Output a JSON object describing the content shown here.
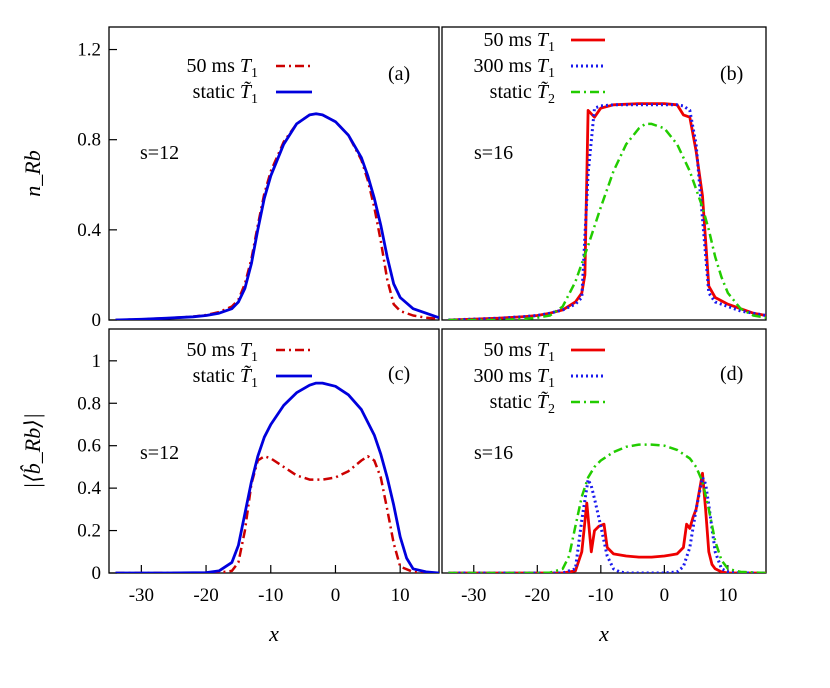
{
  "chart_data": [
    {
      "id": "a",
      "type": "line",
      "panel_label": "(a)",
      "annotation": "s=12",
      "xlim": [
        -35,
        16
      ],
      "ylim": [
        0,
        1.3
      ],
      "yticks": [
        {
          "v": 0,
          "label": "0"
        },
        {
          "v": 0.4,
          "label": "0.4"
        },
        {
          "v": 0.8,
          "label": "0.8"
        },
        {
          "v": 1.2,
          "label": "1.2"
        }
      ],
      "xticks": [],
      "ylabel": "n_Rb",
      "xlabel": "",
      "series": [
        {
          "name": "50 ms T1",
          "label_text": "50 ms",
          "label_sym": "T",
          "label_sub": "1",
          "color": "#cc0000",
          "dash": "9,4,2,4",
          "width": 2.5,
          "x": [
            -34,
            -30,
            -26,
            -22,
            -20,
            -18,
            -16,
            -15,
            -14,
            -13,
            -12,
            -11,
            -10,
            -8,
            -6,
            -4,
            -3,
            -2,
            0,
            2,
            4,
            5,
            6,
            7,
            8,
            9,
            10,
            12,
            14,
            16
          ],
          "y": [
            0,
            0.003,
            0.008,
            0.015,
            0.022,
            0.035,
            0.06,
            0.09,
            0.16,
            0.27,
            0.42,
            0.56,
            0.66,
            0.79,
            0.87,
            0.91,
            0.915,
            0.91,
            0.88,
            0.82,
            0.71,
            0.62,
            0.5,
            0.35,
            0.18,
            0.07,
            0.04,
            0.02,
            0.01,
            0.005
          ]
        },
        {
          "name": "static T~1",
          "label_text": "static",
          "label_sym": "T̃",
          "label_sub": "1",
          "color": "#0000dd",
          "dash": "",
          "width": 2.8,
          "x": [
            -34,
            -30,
            -26,
            -22,
            -20,
            -18,
            -16,
            -15,
            -14,
            -13,
            -12,
            -11,
            -10,
            -8,
            -6,
            -4,
            -3,
            -2,
            0,
            2,
            4,
            5,
            6,
            7,
            8,
            9,
            10,
            12,
            14,
            16
          ],
          "y": [
            0,
            0.003,
            0.008,
            0.014,
            0.02,
            0.03,
            0.05,
            0.08,
            0.14,
            0.25,
            0.4,
            0.54,
            0.64,
            0.78,
            0.87,
            0.91,
            0.915,
            0.91,
            0.88,
            0.82,
            0.72,
            0.64,
            0.54,
            0.42,
            0.28,
            0.16,
            0.1,
            0.05,
            0.03,
            0.01
          ]
        }
      ]
    },
    {
      "id": "b",
      "type": "line",
      "panel_label": "(b)",
      "annotation": "s=16",
      "xlim": [
        -35,
        16
      ],
      "ylim": [
        0,
        1.3
      ],
      "yticks": [],
      "xticks": [],
      "ylabel": "",
      "xlabel": "",
      "series": [
        {
          "name": "50 ms T1",
          "label_text": "50 ms",
          "label_sym": "T",
          "label_sub": "1",
          "color": "#ee0000",
          "dash": "",
          "width": 2.8,
          "x": [
            -34,
            -30,
            -26,
            -22,
            -20,
            -18,
            -16,
            -14,
            -13,
            -12.5,
            -12,
            -11,
            -10,
            -8,
            -4,
            0,
            2,
            3,
            4,
            5,
            6,
            7,
            8,
            10,
            12,
            14,
            16
          ],
          "y": [
            0,
            0.004,
            0.008,
            0.015,
            0.02,
            0.03,
            0.045,
            0.08,
            0.12,
            0.2,
            0.93,
            0.9,
            0.94,
            0.955,
            0.96,
            0.96,
            0.955,
            0.91,
            0.9,
            0.75,
            0.55,
            0.15,
            0.1,
            0.07,
            0.05,
            0.03,
            0.02
          ]
        },
        {
          "name": "300 ms T1",
          "label_text": "300 ms",
          "label_sym": "T",
          "label_sub": "1",
          "color": "#1a1aee",
          "dash": "2,3",
          "width": 3,
          "x": [
            -34,
            -30,
            -26,
            -22,
            -20,
            -18,
            -16,
            -14,
            -13,
            -12,
            -11,
            -10,
            -8,
            -4,
            0,
            2,
            3,
            4,
            5,
            6,
            7,
            8,
            10,
            12,
            14,
            16
          ],
          "y": [
            0,
            0.004,
            0.008,
            0.015,
            0.02,
            0.03,
            0.045,
            0.07,
            0.1,
            0.65,
            0.94,
            0.95,
            0.955,
            0.955,
            0.955,
            0.955,
            0.95,
            0.93,
            0.78,
            0.45,
            0.12,
            0.08,
            0.06,
            0.04,
            0.03,
            0.02
          ]
        },
        {
          "name": "static T~2",
          "label_text": "static",
          "label_sym": "T̃",
          "label_sub": "2",
          "color": "#22cc00",
          "dash": "9,4,2,4",
          "width": 2.5,
          "x": [
            -34,
            -26,
            -22,
            -20,
            -18,
            -16,
            -14,
            -12,
            -10,
            -8,
            -6,
            -4,
            -3,
            -2,
            0,
            2,
            4,
            6,
            7,
            8,
            9,
            10,
            12,
            14,
            16
          ],
          "y": [
            0,
            0,
            0.005,
            0.01,
            0.02,
            0.06,
            0.17,
            0.33,
            0.5,
            0.66,
            0.78,
            0.85,
            0.87,
            0.87,
            0.85,
            0.78,
            0.66,
            0.5,
            0.4,
            0.28,
            0.19,
            0.12,
            0.05,
            0.02,
            0.01
          ]
        }
      ]
    },
    {
      "id": "c",
      "type": "line",
      "panel_label": "(c)",
      "annotation": "s=12",
      "xlim": [
        -35,
        16
      ],
      "ylim": [
        0,
        1.15
      ],
      "yticks": [
        {
          "v": 0,
          "label": "0"
        },
        {
          "v": 0.2,
          "label": "0.2"
        },
        {
          "v": 0.4,
          "label": "0.4"
        },
        {
          "v": 0.6,
          "label": "0.6"
        },
        {
          "v": 0.8,
          "label": "0.8"
        },
        {
          "v": 1,
          "label": "1"
        }
      ],
      "xticks": [
        {
          "v": -30,
          "label": "-30"
        },
        {
          "v": -20,
          "label": "-20"
        },
        {
          "v": -10,
          "label": "-10"
        },
        {
          "v": 0,
          "label": "0"
        },
        {
          "v": 10,
          "label": "10"
        }
      ],
      "ylabel": "|⟨b̂_Rb⟩|",
      "xlabel": "x",
      "series": [
        {
          "name": "50 ms T1",
          "label_text": "50 ms",
          "label_sym": "T",
          "label_sub": "1",
          "color": "#cc0000",
          "dash": "9,4,2,4",
          "width": 2.5,
          "x": [
            -34,
            -26,
            -20,
            -18,
            -16,
            -15,
            -14,
            -13,
            -12,
            -11,
            -10,
            -8,
            -6,
            -4,
            -3,
            -2,
            0,
            2,
            4,
            5,
            6,
            7,
            8,
            9,
            10,
            12,
            14,
            16
          ],
          "y": [
            0,
            0,
            0,
            0.002,
            0.01,
            0.05,
            0.2,
            0.42,
            0.53,
            0.55,
            0.54,
            0.5,
            0.46,
            0.44,
            0.44,
            0.44,
            0.45,
            0.48,
            0.53,
            0.55,
            0.53,
            0.45,
            0.3,
            0.14,
            0.03,
            0.005,
            0,
            0
          ]
        },
        {
          "name": "static T~1",
          "label_text": "static",
          "label_sym": "T̃",
          "label_sub": "1",
          "color": "#0000dd",
          "dash": "",
          "width": 2.8,
          "x": [
            -34,
            -26,
            -20,
            -18,
            -16,
            -15,
            -14,
            -13,
            -12,
            -11,
            -10,
            -8,
            -6,
            -4,
            -3,
            -2,
            0,
            2,
            4,
            6,
            7,
            8,
            9,
            10,
            11,
            12,
            14,
            16
          ],
          "y": [
            0,
            0,
            0.002,
            0.01,
            0.05,
            0.13,
            0.28,
            0.43,
            0.55,
            0.64,
            0.7,
            0.79,
            0.85,
            0.885,
            0.895,
            0.895,
            0.88,
            0.84,
            0.77,
            0.65,
            0.56,
            0.45,
            0.32,
            0.17,
            0.07,
            0.02,
            0.005,
            0
          ]
        }
      ]
    },
    {
      "id": "d",
      "type": "line",
      "panel_label": "(d)",
      "annotation": "s=16",
      "xlim": [
        -35,
        16
      ],
      "ylim": [
        0,
        1.15
      ],
      "yticks": [],
      "xticks": [
        {
          "v": -30,
          "label": "-30"
        },
        {
          "v": -20,
          "label": "-20"
        },
        {
          "v": -10,
          "label": "-10"
        },
        {
          "v": 0,
          "label": "0"
        },
        {
          "v": 10,
          "label": "10"
        }
      ],
      "ylabel": "",
      "xlabel": "x",
      "series": [
        {
          "name": "50 ms T1",
          "label_text": "50 ms",
          "label_sym": "T",
          "label_sub": "1",
          "color": "#ee0000",
          "dash": "",
          "width": 2.8,
          "x": [
            -34,
            -20,
            -16,
            -14,
            -13,
            -12.2,
            -11.5,
            -11,
            -10.3,
            -9.5,
            -9,
            -8,
            -6,
            -4,
            -2,
            0,
            1,
            2,
            3,
            3.5,
            4,
            4.5,
            5,
            6,
            6.5,
            7,
            7.5,
            8,
            9,
            10,
            12,
            16
          ],
          "y": [
            0,
            0,
            0,
            0.01,
            0.1,
            0.33,
            0.1,
            0.2,
            0.22,
            0.23,
            0.12,
            0.09,
            0.08,
            0.075,
            0.075,
            0.08,
            0.085,
            0.09,
            0.12,
            0.23,
            0.21,
            0.26,
            0.3,
            0.47,
            0.3,
            0.1,
            0.04,
            0.02,
            0.005,
            0,
            0,
            0
          ]
        },
        {
          "name": "300 ms T1",
          "label_text": "300 ms",
          "label_sym": "T",
          "label_sub": "1",
          "color": "#1a1aee",
          "dash": "2,3",
          "width": 3,
          "x": [
            -34,
            -20,
            -16,
            -14,
            -13,
            -12,
            -11.5,
            -11,
            -10,
            -9,
            -8,
            -7,
            -6,
            -4,
            0,
            2,
            3,
            4,
            5,
            6,
            6.5,
            7,
            8,
            9,
            10,
            12,
            16
          ],
          "y": [
            0,
            0,
            0,
            0.02,
            0.25,
            0.44,
            0.41,
            0.35,
            0.22,
            0.08,
            0.02,
            0.005,
            0,
            0,
            0,
            0.005,
            0.03,
            0.12,
            0.3,
            0.45,
            0.42,
            0.32,
            0.1,
            0.02,
            0.005,
            0,
            0
          ]
        },
        {
          "name": "static T~2",
          "label_text": "static",
          "label_sym": "T̃",
          "label_sub": "2",
          "color": "#22cc00",
          "dash": "9,4,2,4",
          "width": 2.5,
          "x": [
            -34,
            -20,
            -18,
            -16,
            -15,
            -14,
            -13,
            -12,
            -11,
            -10,
            -8,
            -6,
            -4,
            -2,
            0,
            2,
            4,
            5,
            6,
            7,
            8,
            9,
            10,
            12,
            16
          ],
          "y": [
            0,
            0,
            0.002,
            0.02,
            0.08,
            0.22,
            0.36,
            0.45,
            0.5,
            0.53,
            0.57,
            0.595,
            0.605,
            0.605,
            0.6,
            0.58,
            0.54,
            0.5,
            0.43,
            0.3,
            0.15,
            0.06,
            0.02,
            0.005,
            0
          ]
        }
      ]
    }
  ]
}
